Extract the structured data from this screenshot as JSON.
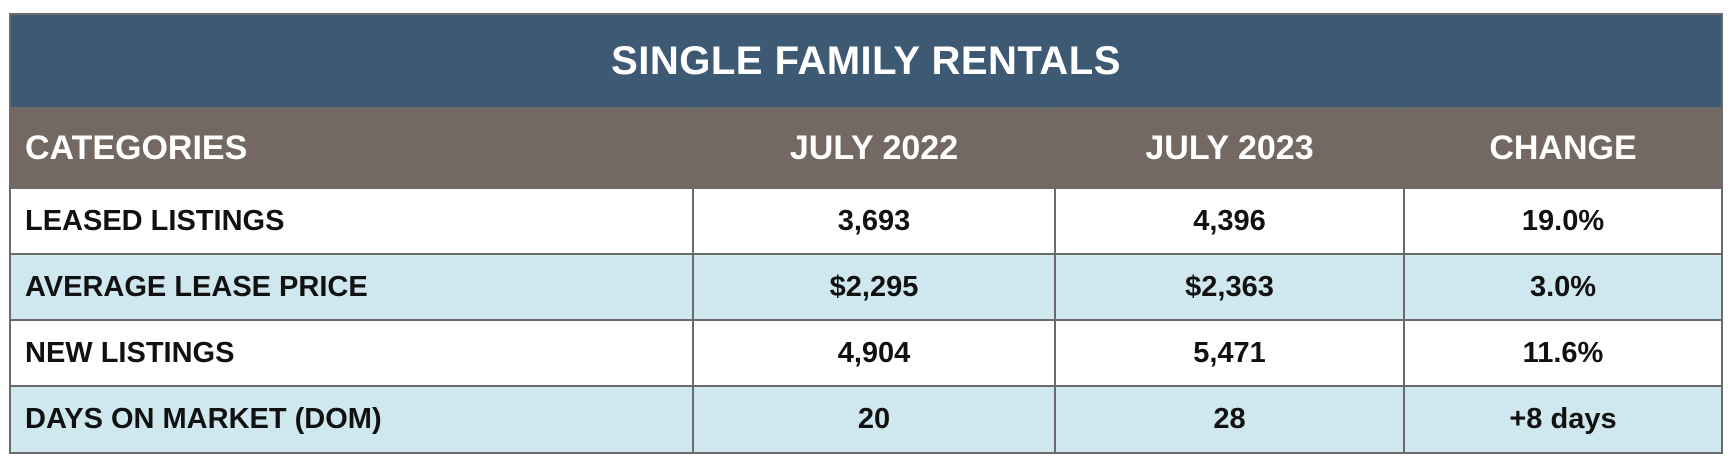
{
  "title": "SINGLE FAMILY RENTALS",
  "headers": [
    "CATEGORIES",
    "JULY 2022",
    "JULY 2023",
    "CHANGE"
  ],
  "rows": [
    [
      "LEASED LISTINGS",
      "3,693",
      "4,396",
      "19.0%"
    ],
    [
      "AVERAGE LEASE PRICE",
      "$2,295",
      "$2,363",
      "3.0%"
    ],
    [
      "NEW LISTINGS",
      "4,904",
      "5,471",
      "11.6%"
    ],
    [
      "DAYS ON MARKET (DOM)",
      "20",
      "28",
      "+8 days"
    ]
  ],
  "colors": {
    "title_bg": "#3e5974",
    "header_bg": "#736962",
    "row_alt_bg": "#cfe7ee",
    "border": "#6b6b6b"
  },
  "chart_data": {
    "type": "table",
    "title": "SINGLE FAMILY RENTALS",
    "columns": [
      "CATEGORIES",
      "JULY 2022",
      "JULY 2023",
      "CHANGE"
    ],
    "rows": [
      {
        "category": "LEASED LISTINGS",
        "july_2022": "3,693",
        "july_2023": "4,396",
        "change": "19.0%"
      },
      {
        "category": "AVERAGE LEASE PRICE",
        "july_2022": "$2,295",
        "july_2023": "$2,363",
        "change": "3.0%"
      },
      {
        "category": "NEW LISTINGS",
        "july_2022": "4,904",
        "july_2023": "5,471",
        "change": "11.6%"
      },
      {
        "category": "DAYS ON MARKET (DOM)",
        "july_2022": "20",
        "july_2023": "28",
        "change": "+8 days"
      }
    ]
  }
}
